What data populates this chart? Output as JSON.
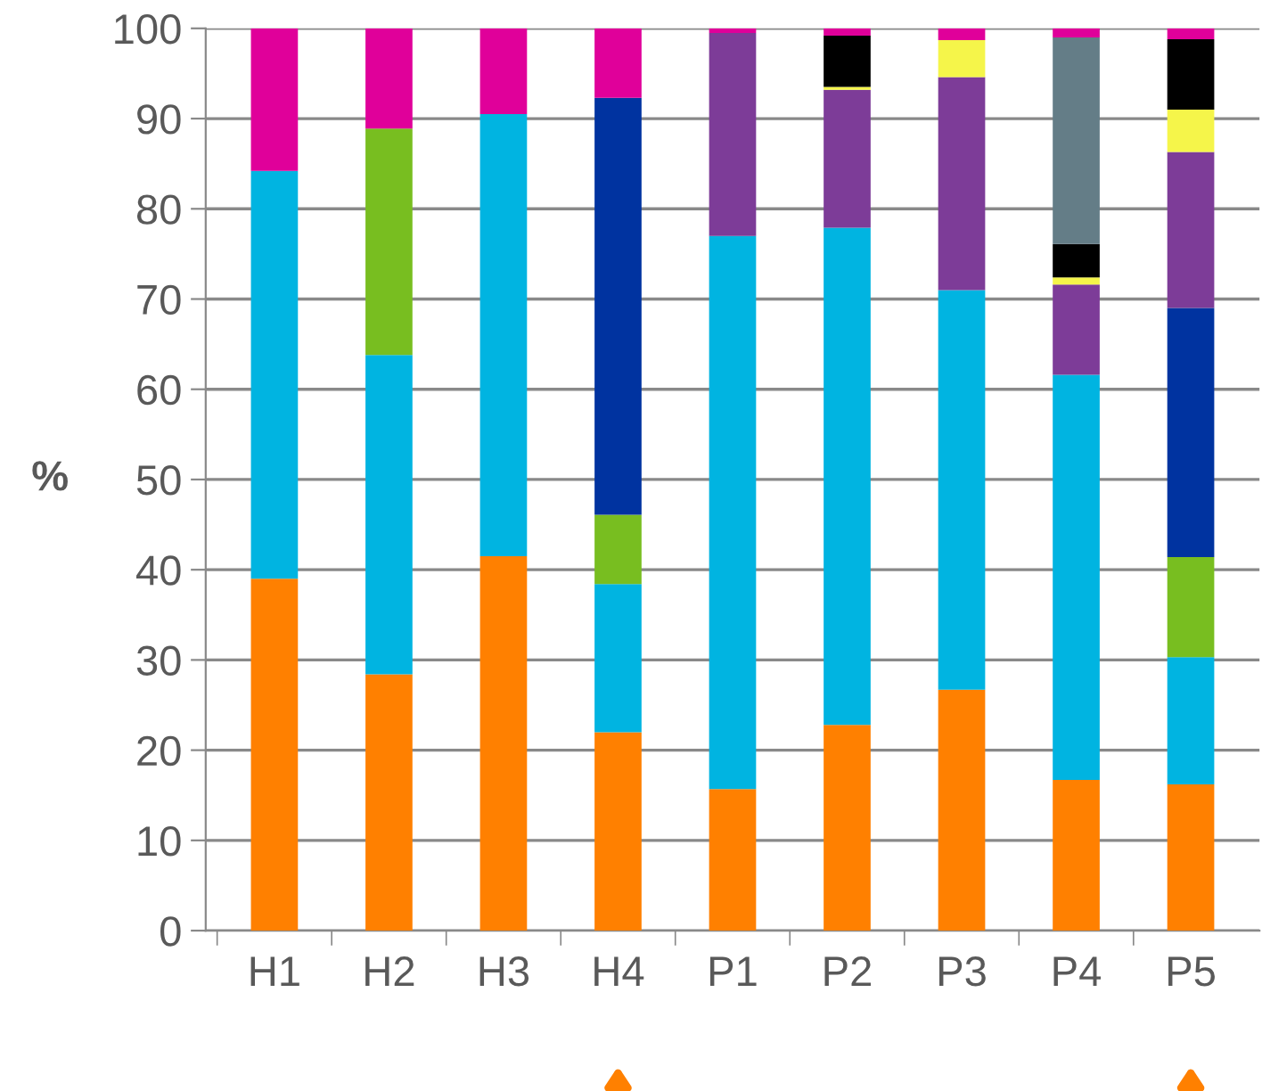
{
  "chart_data": {
    "type": "bar",
    "stacked": true,
    "ylabel": "%",
    "categories": [
      "H1",
      "H2",
      "H3",
      "H4",
      "P1",
      "P2",
      "P3",
      "P4",
      "P5"
    ],
    "series": [
      {
        "color": "#ff8000",
        "values": [
          39.0,
          28.4,
          41.5,
          22.0,
          15.7,
          22.8,
          26.7,
          16.7,
          16.2
        ]
      },
      {
        "color": "#00b4e1",
        "values": [
          45.2,
          35.4,
          49.0,
          16.4,
          61.3,
          55.1,
          44.3,
          44.9,
          14.1
        ]
      },
      {
        "color": "#78be20",
        "values": [
          null,
          25.1,
          null,
          7.7,
          null,
          null,
          null,
          null,
          11.1
        ]
      },
      {
        "color": "#0033a0",
        "values": [
          null,
          null,
          null,
          46.2,
          null,
          null,
          null,
          null,
          27.6
        ]
      },
      {
        "color": "#7d3c98",
        "values": [
          null,
          null,
          null,
          null,
          22.5,
          15.3,
          23.6,
          10.0,
          17.3
        ]
      },
      {
        "color": "#f5f54a",
        "values": [
          null,
          null,
          null,
          null,
          null,
          0.3,
          4.1,
          0.8,
          4.7
        ]
      },
      {
        "color": "#000000",
        "values": [
          null,
          null,
          null,
          null,
          null,
          5.7,
          null,
          3.7,
          7.8
        ]
      },
      {
        "color": "#647d87",
        "values": [
          null,
          null,
          null,
          null,
          null,
          null,
          null,
          22.9,
          null
        ]
      },
      {
        "color": "#e0009a",
        "values": [
          15.8,
          11.1,
          9.5,
          7.7,
          0.5,
          0.8,
          1.3,
          1.0,
          1.2
        ]
      }
    ],
    "ylim": [
      0,
      100
    ],
    "yticks": [
      0,
      10,
      20,
      30,
      40,
      50,
      60,
      70,
      80,
      90,
      100
    ],
    "grid": "y",
    "legend": false
  }
}
